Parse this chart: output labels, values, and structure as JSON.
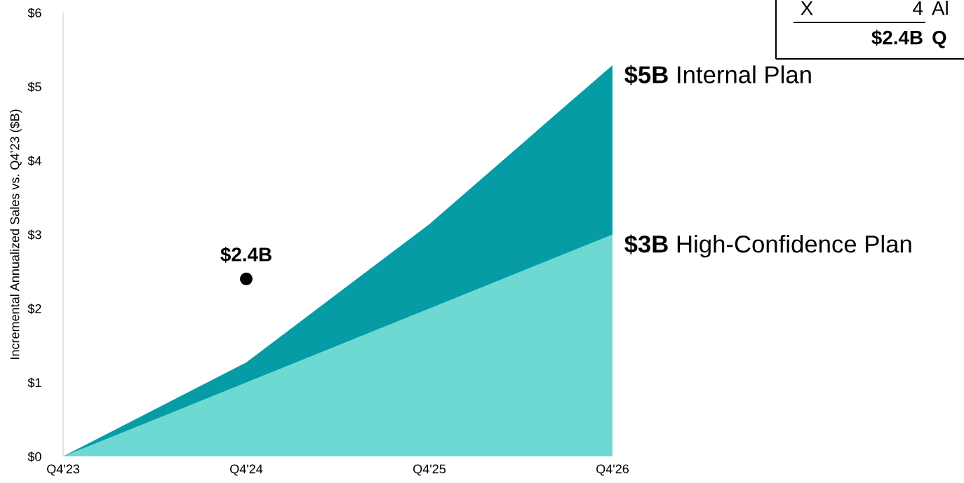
{
  "chart_data": {
    "type": "area",
    "ylabel": "Incremental Annualized Sales vs. Q4’23 ($B)",
    "categories": [
      "Q4'23",
      "Q4'24",
      "Q4'25",
      "Q4'26"
    ],
    "ylim": [
      0,
      6
    ],
    "yticks": [
      {
        "value": 0,
        "label": "$0"
      },
      {
        "value": 1,
        "label": "$1"
      },
      {
        "value": 2,
        "label": "$2"
      },
      {
        "value": 3,
        "label": "$3"
      },
      {
        "value": 4,
        "label": "$4"
      },
      {
        "value": 5,
        "label": "$5"
      },
      {
        "value": 6,
        "label": "$6"
      }
    ],
    "series": [
      {
        "name": "Internal Plan",
        "color": "#069ca6",
        "values": [
          0,
          1.27,
          3.14,
          5.29
        ],
        "value_labels": [
          null,
          null,
          null,
          "$5B"
        ]
      },
      {
        "name": "High-Confidence Plan",
        "color": "#6dd9d2",
        "values": [
          0,
          1,
          2,
          3
        ],
        "value_labels": [
          null,
          null,
          null,
          "$3B"
        ]
      },
      {
        "type": "scatter",
        "marker": "circle",
        "color": "#000000",
        "values": [
          null,
          2.4,
          null,
          null
        ],
        "value_labels": [
          null,
          "$2.4B",
          null,
          null
        ]
      }
    ],
    "annotations": [
      "X",
      "4",
      "Al",
      "$2.4B",
      "Q"
    ]
  }
}
